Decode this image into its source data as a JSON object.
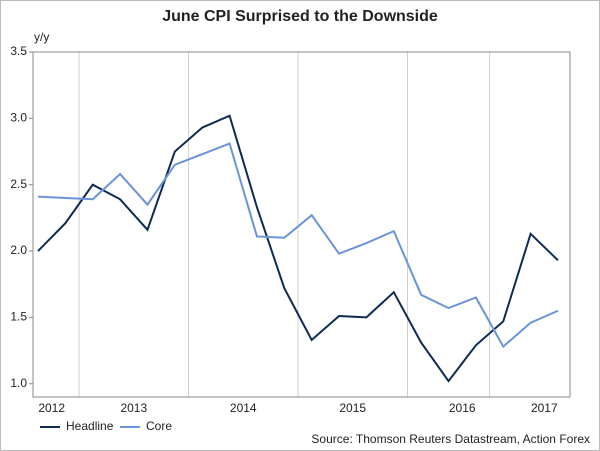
{
  "chart_data": {
    "type": "line",
    "title": "June CPI Surprised to the Downside",
    "y_label": "y/y",
    "categories": [
      null,
      "2012",
      null,
      null,
      "2013",
      null,
      null,
      null,
      "2014",
      null,
      null,
      null,
      "2015",
      null,
      null,
      null,
      "2016",
      null,
      null,
      "2017"
    ],
    "series": [
      {
        "name": "Headline",
        "color": "#0d2a52",
        "values": [
          2.0,
          2.21,
          2.5,
          2.39,
          2.16,
          2.75,
          2.93,
          3.02,
          2.33,
          1.72,
          1.33,
          1.51,
          1.5,
          1.69,
          1.31,
          1.02,
          1.29,
          1.47,
          2.13,
          1.93
        ]
      },
      {
        "name": "Core",
        "color": "#6a93d8",
        "values": [
          2.41,
          2.4,
          2.39,
          2.58,
          2.35,
          2.65,
          2.73,
          2.81,
          2.11,
          2.1,
          2.27,
          1.98,
          2.06,
          2.15,
          1.67,
          1.57,
          1.65,
          1.28,
          1.46,
          1.55
        ]
      }
    ],
    "ylim": [
      0.9,
      3.5
    ],
    "yticks": [
      {
        "value": 1.0,
        "label": "1.0"
      },
      1.5,
      {
        "value": 2.0,
        "label": "2.0"
      },
      2.5,
      {
        "value": 3.0,
        "label": "3.0"
      },
      3.5
    ],
    "source": "Source: Thomson Reuters Datastream, Action Forex"
  }
}
